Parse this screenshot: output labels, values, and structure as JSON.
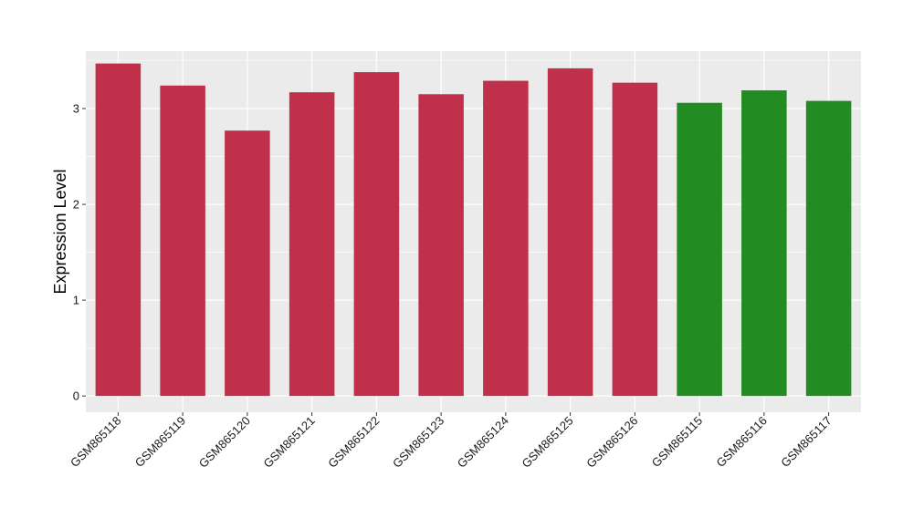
{
  "chart_data": {
    "type": "bar",
    "title": "",
    "xlabel": "",
    "ylabel": "Expression Level",
    "ylim": [
      -0.17,
      3.6
    ],
    "yticks": [
      0,
      1,
      2,
      3
    ],
    "grid": true,
    "legend": "none",
    "categories": [
      "GSM865118",
      "GSM865119",
      "GSM865120",
      "GSM865121",
      "GSM865122",
      "GSM865123",
      "GSM865124",
      "GSM865125",
      "GSM865126",
      "GSM865115",
      "GSM865116",
      "GSM865117"
    ],
    "values": [
      3.47,
      3.24,
      2.77,
      3.17,
      3.38,
      3.15,
      3.29,
      3.42,
      3.27,
      3.06,
      3.19,
      3.08
    ],
    "bar_colors": [
      "#c0304a",
      "#c0304a",
      "#c0304a",
      "#c0304a",
      "#c0304a",
      "#c0304a",
      "#c0304a",
      "#c0304a",
      "#c0304a",
      "#228b22",
      "#228b22",
      "#228b22"
    ],
    "panel_background": "#ebebeb",
    "gridline_color": "#ffffff"
  }
}
